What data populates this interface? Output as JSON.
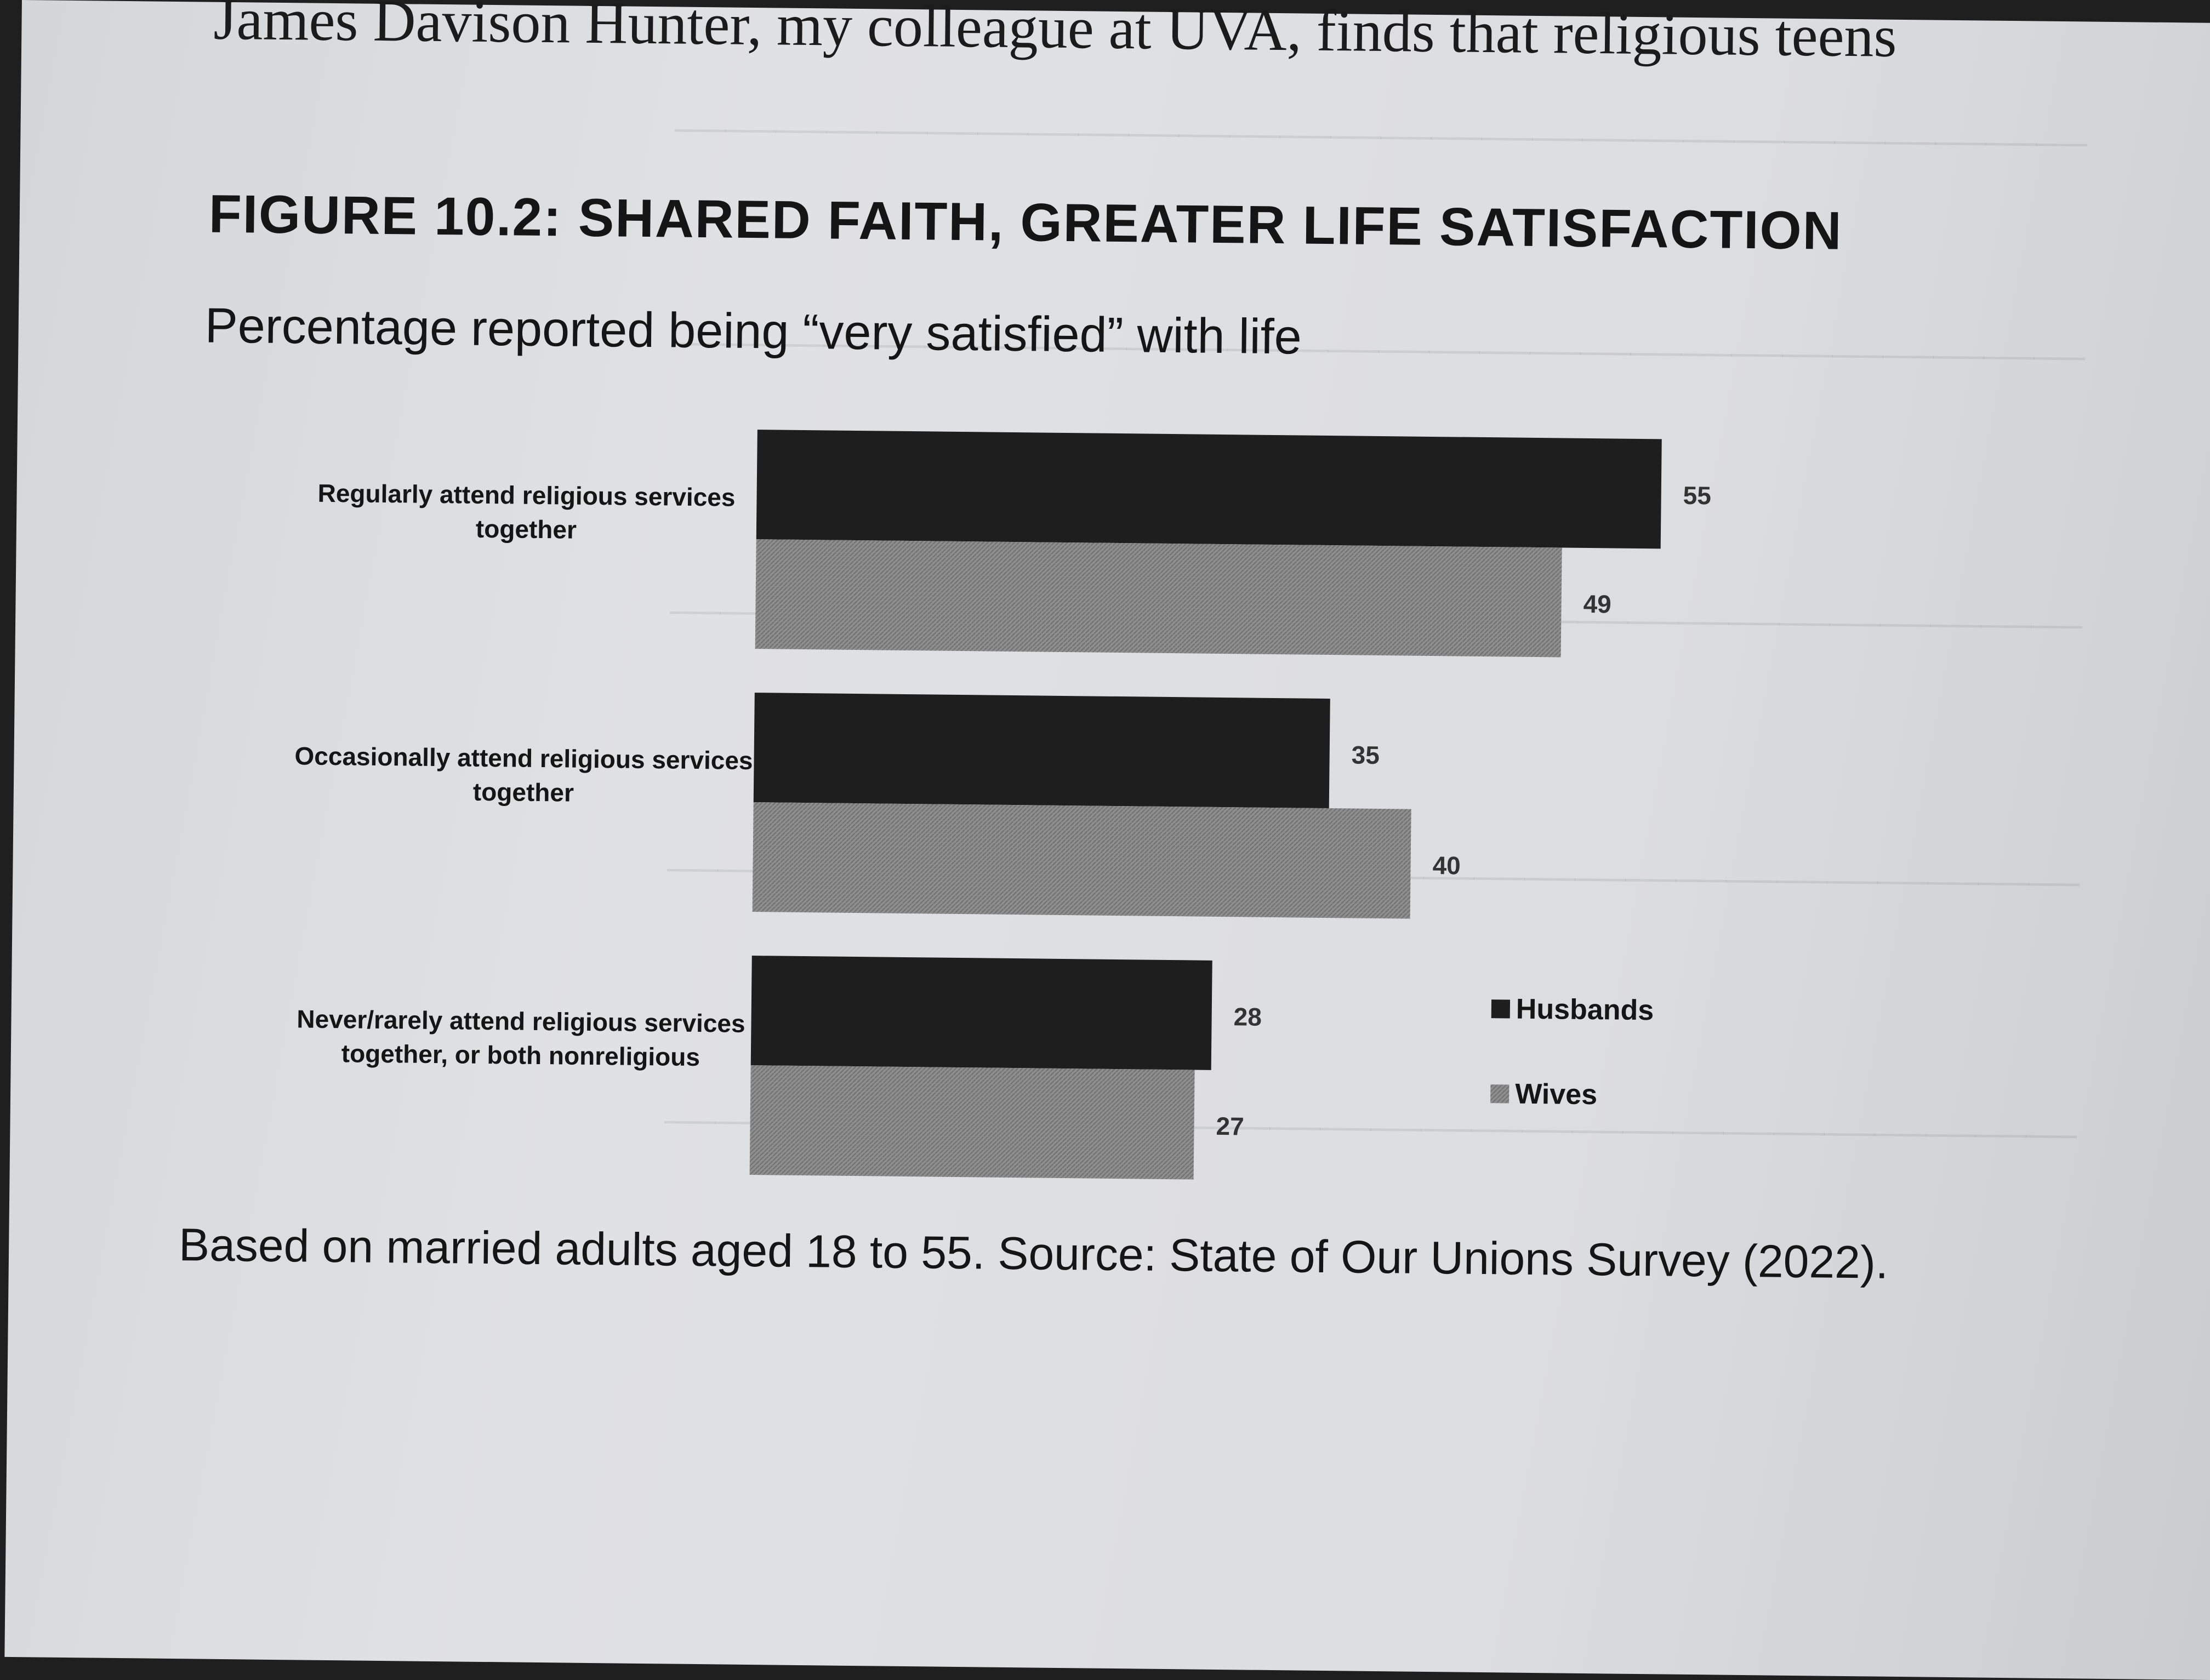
{
  "body_text": {
    "top_line": "James Davison Hunter, my colleague at UVA, finds that religious teens"
  },
  "figure": {
    "title": "FIGURE 10.2: SHARED FAITH, GREATER LIFE SATISFACTION",
    "subtitle": "Percentage reported being “very satisfied” with life",
    "source_note": "Based on married adults aged 18 to 55. Source: State of Our Unions Survey (2022)."
  },
  "colors": {
    "husbands": "#1e1e1e",
    "wives": "#8c8c8c",
    "text": "#151515"
  },
  "chart_data": {
    "type": "bar",
    "orientation": "horizontal",
    "title": "FIGURE 10.2: SHARED FAITH, GREATER LIFE SATISFACTION",
    "subtitle": "Percentage reported being “very satisfied” with life",
    "categories": [
      [
        "Regularly attend religious services",
        "together"
      ],
      [
        "Occasionally attend religious services",
        "together"
      ],
      [
        "Never/rarely attend religious services",
        "together, or both nonreligious"
      ]
    ],
    "series": [
      {
        "name": "Husbands",
        "values": [
          55,
          35,
          28
        ]
      },
      {
        "name": "Wives",
        "values": [
          49,
          40,
          27
        ]
      }
    ],
    "data_labels": true,
    "legend_position": "right",
    "grid": false,
    "xlim": [
      0,
      55
    ]
  }
}
